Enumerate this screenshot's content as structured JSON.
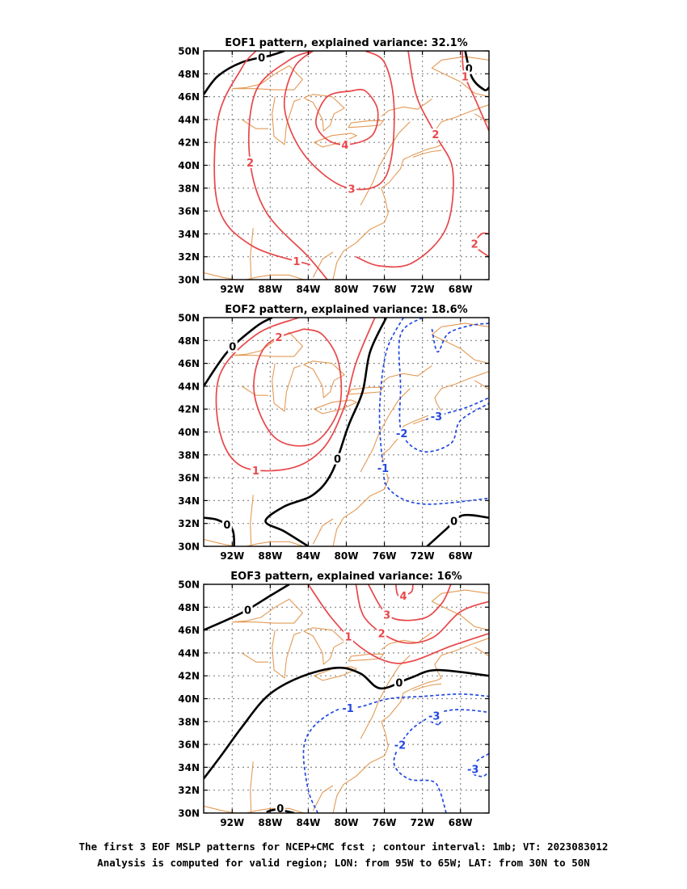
{
  "colors": {
    "positive": "#e8474a",
    "negative": "#2248e0",
    "zero": "#000000",
    "coast": "#e39a55",
    "grid": "#888888"
  },
  "caption": {
    "line1": "The first 3 EOF MSLP patterns for NCEP+CMC fcst ; contour interval: 1mb; VT: 2023083012",
    "line2": "Analysis is computed for valid region; LON: from 95W to 65W; LAT: from 30N to 50N"
  },
  "chart_data": [
    {
      "type": "contour-map",
      "title": "EOF1 pattern, explained variance: 32.1%",
      "x_ticks": [
        "92W",
        "88W",
        "84W",
        "80W",
        "76W",
        "72W",
        "68W"
      ],
      "y_ticks": [
        "30N",
        "32N",
        "34N",
        "36N",
        "38N",
        "40N",
        "42N",
        "44N",
        "46N",
        "48N",
        "50N"
      ],
      "xlim": [
        -95,
        -65
      ],
      "ylim": [
        30,
        50
      ],
      "grid": true,
      "contours": [
        {
          "level": 0,
          "label": "0",
          "points": [
            [
              -95,
              46.2
            ],
            [
              -93.5,
              47.8
            ],
            [
              -91,
              49
            ],
            [
              -88,
              49.6
            ],
            [
              -86.5,
              50
            ]
          ]
        },
        {
          "level": 0,
          "label": "0",
          "points": [
            [
              -67.5,
              50
            ],
            [
              -66.8,
              47.7
            ],
            [
              -65.5,
              46.6
            ],
            [
              -65,
              46.8
            ]
          ]
        },
        {
          "level": 1,
          "label": "1",
          "points": [
            [
              -83.8,
              31.3
            ],
            [
              -90,
              33
            ],
            [
              -93.5,
              36.5
            ],
            [
              -93.5,
              44
            ],
            [
              -91,
              48.5
            ],
            [
              -89.5,
              50
            ]
          ]
        },
        {
          "level": 1,
          "label": "1",
          "points": [
            [
              -67.8,
              50
            ],
            [
              -67.6,
              48
            ],
            [
              -66.3,
              45.5
            ],
            [
              -65,
              43
            ]
          ]
        },
        {
          "level": 2,
          "label": "2",
          "points": [
            [
              -82,
              30
            ],
            [
              -84,
              32
            ],
            [
              -88.5,
              36
            ],
            [
              -90.2,
              41
            ],
            [
              -89.5,
              46.5
            ],
            [
              -86,
              49.2
            ],
            [
              -83.5,
              50
            ]
          ]
        },
        {
          "level": 2,
          "label": "2",
          "points": [
            [
              -73.5,
              50
            ],
            [
              -72.6,
              46
            ],
            [
              -70.5,
              42.5
            ],
            [
              -68.8,
              39.5
            ],
            [
              -69.5,
              34.5
            ],
            [
              -73,
              31.5
            ],
            [
              -76.5,
              31.2
            ],
            [
              -79,
              32
            ]
          ]
        },
        {
          "level": 2,
          "label": "2",
          "points": [
            [
              -65,
              32
            ],
            [
              -66.5,
              33
            ],
            [
              -65.8,
              34
            ],
            [
              -65,
              34
            ]
          ]
        },
        {
          "level": 3,
          "label": "3",
          "points": [
            [
              -78,
              50
            ],
            [
              -76,
              49
            ],
            [
              -75,
              45.5
            ],
            [
              -75.3,
              40.5
            ],
            [
              -76.8,
              38.2
            ],
            [
              -80.5,
              38.2
            ],
            [
              -84.5,
              41
            ],
            [
              -86.5,
              45
            ],
            [
              -85.5,
              48.5
            ],
            [
              -83.5,
              50
            ]
          ]
        },
        {
          "level": 4,
          "label": "4",
          "points": [
            [
              -79.5,
              46.5
            ],
            [
              -82,
              46
            ],
            [
              -83.2,
              43.8
            ],
            [
              -82.1,
              42.3
            ],
            [
              -80,
              41.8
            ],
            [
              -77.3,
              42.6
            ],
            [
              -76.7,
              44.8
            ],
            [
              -78,
              46.5
            ],
            [
              -79.5,
              46.5
            ]
          ]
        }
      ]
    },
    {
      "type": "contour-map",
      "title": "EOF2 pattern, explained variance: 18.6%",
      "x_ticks": [
        "92W",
        "88W",
        "84W",
        "80W",
        "76W",
        "72W",
        "68W"
      ],
      "y_ticks": [
        "30N",
        "32N",
        "34N",
        "36N",
        "38N",
        "40N",
        "42N",
        "44N",
        "46N",
        "48N",
        "50N"
      ],
      "xlim": [
        -95,
        -65
      ],
      "ylim": [
        30,
        50
      ],
      "grid": true,
      "contours": [
        {
          "level": 0,
          "label": "0",
          "points": [
            [
              -95,
              44
            ],
            [
              -92.5,
              47
            ],
            [
              -89.5,
              49.2
            ],
            [
              -87.8,
              50
            ]
          ]
        },
        {
          "level": 0,
          "label": "0",
          "points": [
            [
              -75.8,
              50
            ],
            [
              -77.5,
              47
            ],
            [
              -78.3,
              43.5
            ],
            [
              -79.8,
              40.5
            ],
            [
              -81.5,
              36.5
            ],
            [
              -83.5,
              34.5
            ],
            [
              -86.5,
              33.5
            ],
            [
              -88.5,
              32.2
            ],
            [
              -86.5,
              31.3
            ],
            [
              -84,
              30
            ]
          ]
        },
        {
          "level": 0,
          "label": "0",
          "points": [
            [
              -95,
              32.5
            ],
            [
              -93.5,
              32.3
            ],
            [
              -92,
              31.5
            ],
            [
              -91.8,
              30
            ]
          ]
        },
        {
          "level": 0,
          "label": "0",
          "points": [
            [
              -71.5,
              30
            ],
            [
              -69.5,
              31.5
            ],
            [
              -67.8,
              32.7
            ],
            [
              -65,
              32.5
            ]
          ]
        },
        {
          "level": 1,
          "label": "1",
          "points": [
            [
              -77,
              50
            ],
            [
              -79,
              46
            ],
            [
              -80.3,
              42
            ],
            [
              -82.5,
              38.5
            ],
            [
              -86,
              36.8
            ],
            [
              -91,
              37
            ],
            [
              -93.3,
              40
            ],
            [
              -93.3,
              45
            ],
            [
              -89.5,
              48.5
            ],
            [
              -85,
              50
            ]
          ]
        },
        {
          "level": 2,
          "label": "2",
          "points": [
            [
              -84.5,
              49
            ],
            [
              -88.5,
              47.5
            ],
            [
              -89.7,
              43.5
            ],
            [
              -87.5,
              39.5
            ],
            [
              -83.5,
              39
            ],
            [
              -80.8,
              42
            ],
            [
              -80.8,
              46
            ],
            [
              -82.5,
              48.5
            ],
            [
              -84.5,
              49
            ]
          ]
        },
        {
          "level": -1,
          "label": "-1",
          "points": [
            [
              -74,
              50
            ],
            [
              -75.8,
              47
            ],
            [
              -76.5,
              42
            ],
            [
              -76.2,
              37.5
            ],
            [
              -75.5,
              35
            ],
            [
              -72,
              33.7
            ],
            [
              -65,
              34.2
            ]
          ]
        },
        {
          "level": -2,
          "label": "-2",
          "points": [
            [
              -72,
              50
            ],
            [
              -74.3,
              48.5
            ],
            [
              -74.3,
              44
            ],
            [
              -74.2,
              40
            ],
            [
              -72,
              38.3
            ],
            [
              -69,
              39
            ],
            [
              -68,
              41
            ],
            [
              -65,
              42.5
            ]
          ]
        },
        {
          "level": -3,
          "label": "-3",
          "points": [
            [
              -71.6,
              41.1
            ],
            [
              -69.6,
              41.6
            ],
            [
              -67.2,
              42.2
            ],
            [
              -65,
              43
            ]
          ]
        },
        {
          "level": -3,
          "label": "",
          "points": [
            [
              -71,
              49
            ],
            [
              -70.4,
              47
            ],
            [
              -69.3,
              48.6
            ],
            [
              -67,
              49.3
            ],
            [
              -65,
              49.5
            ]
          ]
        }
      ]
    },
    {
      "type": "contour-map",
      "title": "EOF3 pattern, explained variance: 16%",
      "x_ticks": [
        "92W",
        "88W",
        "84W",
        "80W",
        "76W",
        "72W",
        "68W"
      ],
      "y_ticks": [
        "30N",
        "32N",
        "34N",
        "36N",
        "38N",
        "40N",
        "42N",
        "44N",
        "46N",
        "48N",
        "50N"
      ],
      "xlim": [
        -95,
        -65
      ],
      "ylim": [
        30,
        50
      ],
      "grid": true,
      "contours": [
        {
          "level": 0,
          "label": "0",
          "points": [
            [
              -95,
              46
            ],
            [
              -91,
              47.5
            ],
            [
              -88,
              49
            ],
            [
              -86,
              50
            ]
          ]
        },
        {
          "level": 0,
          "label": "0",
          "points": [
            [
              -95,
              33
            ],
            [
              -93,
              35.2
            ],
            [
              -91,
              37.5
            ],
            [
              -88.2,
              40.3
            ],
            [
              -84.8,
              41.9
            ],
            [
              -81,
              42.7
            ],
            [
              -78.5,
              42.2
            ],
            [
              -76.4,
              40.9
            ],
            [
              -73.3,
              41.8
            ],
            [
              -70.5,
              42.5
            ],
            [
              -65,
              42
            ]
          ]
        },
        {
          "level": 0,
          "label": "0",
          "points": [
            [
              -88.4,
              30.1
            ],
            [
              -87.3,
              30.3
            ],
            [
              -85.5,
              30
            ]
          ]
        },
        {
          "level": 1,
          "label": "1",
          "points": [
            [
              -84,
              50
            ],
            [
              -81.5,
              47
            ],
            [
              -78.5,
              44.5
            ],
            [
              -75.5,
              43.2
            ],
            [
              -73,
              43.3
            ],
            [
              -69,
              44.6
            ],
            [
              -65,
              45.7
            ]
          ]
        },
        {
          "level": 2,
          "label": "2",
          "points": [
            [
              -79,
              50
            ],
            [
              -78,
              47
            ],
            [
              -74.5,
              45
            ],
            [
              -71,
              45.3
            ],
            [
              -68,
              47.6
            ],
            [
              -65,
              48.5
            ]
          ]
        },
        {
          "level": 3,
          "label": "3",
          "points": [
            [
              -77.7,
              50
            ],
            [
              -75.5,
              47.2
            ],
            [
              -72,
              47
            ],
            [
              -70,
              48.3
            ],
            [
              -69,
              50
            ]
          ]
        },
        {
          "level": 4,
          "label": "4",
          "points": [
            [
              -74.8,
              50
            ],
            [
              -74.5,
              49
            ],
            [
              -73.2,
              49.3
            ],
            [
              -73,
              50
            ]
          ]
        },
        {
          "level": -1,
          "label": "-1",
          "points": [
            [
              -83,
              30
            ],
            [
              -84,
              32
            ],
            [
              -84.5,
              35.5
            ],
            [
              -83.5,
              37.5
            ],
            [
              -81,
              39
            ],
            [
              -78.5,
              39.3
            ],
            [
              -75.5,
              40
            ],
            [
              -72,
              40.2
            ],
            [
              -68,
              40.4
            ],
            [
              -65,
              40.2
            ]
          ]
        },
        {
          "level": -2,
          "label": "-2",
          "points": [
            [
              -69.5,
              30
            ],
            [
              -70.2,
              32
            ],
            [
              -71,
              32.8
            ],
            [
              -73.5,
              33
            ],
            [
              -75,
              34.5
            ],
            [
              -73.5,
              37
            ],
            [
              -71,
              38.5
            ],
            [
              -69,
              39
            ],
            [
              -67,
              39
            ],
            [
              -65,
              38.8
            ]
          ]
        },
        {
          "level": -3,
          "label": "-3",
          "points": [
            [
              -65,
              35.2
            ],
            [
              -66.3,
              34.5
            ],
            [
              -66.7,
              33.5
            ],
            [
              -65.7,
              33.2
            ],
            [
              -65,
              33.6
            ]
          ]
        },
        {
          "level": -3,
          "label": "-3",
          "points": [
            [
              -70.3,
              37.7
            ],
            [
              -71.2,
              38.1
            ],
            [
              -70.5,
              38.6
            ],
            [
              -70,
              38.2
            ],
            [
              -70.3,
              37.7
            ]
          ]
        }
      ]
    }
  ]
}
